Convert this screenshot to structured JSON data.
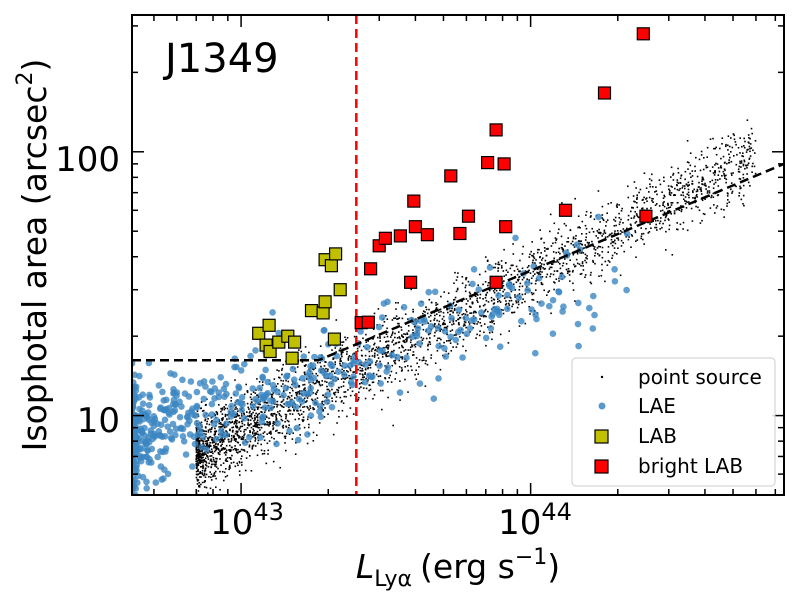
{
  "chart_data": {
    "type": "scatter",
    "panel_label": "J1349",
    "xlabel_main": "L",
    "xlabel_sub": "Lyα",
    "xlabel_units": "(erg s",
    "xlabel_exp": "−1",
    "xlabel_close": ")",
    "ylabel": "Isophotal area (arcsec",
    "ylabel_exp": "2",
    "ylabel_close": ")",
    "x_scale": "log",
    "y_scale": "log",
    "xlim": [
      4.2e+42,
      7.5e+44
    ],
    "ylim": [
      5.0,
      330
    ],
    "x_tick_labels": [
      {
        "base": "10",
        "exp": "43",
        "value": 1e+43
      },
      {
        "base": "10",
        "exp": "44",
        "value": 1e+44
      }
    ],
    "y_tick_labels": [
      {
        "text": "10",
        "value": 10
      },
      {
        "text": "100",
        "value": 100
      }
    ],
    "grid": false,
    "legend_position": "bottom-right",
    "legend": [
      {
        "label": "point source",
        "marker": "dot",
        "color": "#000000"
      },
      {
        "label": "LAE",
        "marker": "circle",
        "color": "#3b86c2"
      },
      {
        "label": "LAB",
        "marker": "square",
        "color": "#c0c000"
      },
      {
        "label": "bright LAB",
        "marker": "square",
        "color": "#ff0000"
      }
    ],
    "threshold_line": {
      "x": 2.5e+43,
      "color": "#ff0000",
      "style": "dashed"
    },
    "selection_boundary": [
      [
        4.2e+42,
        16.2
      ],
      [
        1.85e+43,
        16.2
      ],
      [
        7.5e+44,
        90
      ]
    ],
    "point_source_trend": {
      "x_range": [
        7e+42,
        6e+44
      ],
      "log_y_at_1e43": 0.95,
      "slope": 0.58,
      "scatter": 0.07,
      "count": 3200
    },
    "lae_trend": {
      "x_range": [
        4.2e+42,
        2.2e+44
      ],
      "count": 560
    },
    "series": [
      {
        "name": "LAB",
        "color": "#c0c000",
        "points": [
          [
            1.15e+43,
            20.5
          ],
          [
            1.22e+43,
            18.5
          ],
          [
            1.25e+43,
            22.0
          ],
          [
            1.26e+43,
            17.5
          ],
          [
            1.35e+43,
            19.0
          ],
          [
            1.45e+43,
            20.0
          ],
          [
            1.5e+43,
            16.5
          ],
          [
            1.53e+43,
            19.0
          ],
          [
            1.75e+43,
            25.0
          ],
          [
            1.92e+43,
            24.5
          ],
          [
            1.95e+43,
            27.0
          ],
          [
            1.95e+43,
            39.0
          ],
          [
            2.05e+43,
            37.0
          ],
          [
            2.12e+43,
            41.0
          ],
          [
            2.1e+43,
            19.5
          ],
          [
            2.2e+43,
            30.0
          ]
        ]
      },
      {
        "name": "bright LAB",
        "color": "#ff0000",
        "points": [
          [
            2.6e+43,
            22.5
          ],
          [
            2.75e+43,
            22.6
          ],
          [
            2.8e+43,
            36.0
          ],
          [
            3e+43,
            44.0
          ],
          [
            3.15e+43,
            47.0
          ],
          [
            3.55e+43,
            48.0
          ],
          [
            3.85e+43,
            32.0
          ],
          [
            3.95e+43,
            65.0
          ],
          [
            4e+43,
            52.0
          ],
          [
            4.4e+43,
            48.5
          ],
          [
            5.3e+43,
            81.0
          ],
          [
            5.7e+43,
            49.0
          ],
          [
            6.1e+43,
            57.0
          ],
          [
            7.1e+43,
            91.0
          ],
          [
            7.6e+43,
            121.0
          ],
          [
            7.6e+43,
            32.0
          ],
          [
            8.1e+43,
            90.0
          ],
          [
            8.2e+43,
            52.0
          ],
          [
            1.32e+44,
            60.0
          ],
          [
            1.8e+44,
            167.0
          ],
          [
            2.45e+44,
            280.0
          ],
          [
            2.5e+44,
            57.0
          ]
        ]
      }
    ]
  }
}
